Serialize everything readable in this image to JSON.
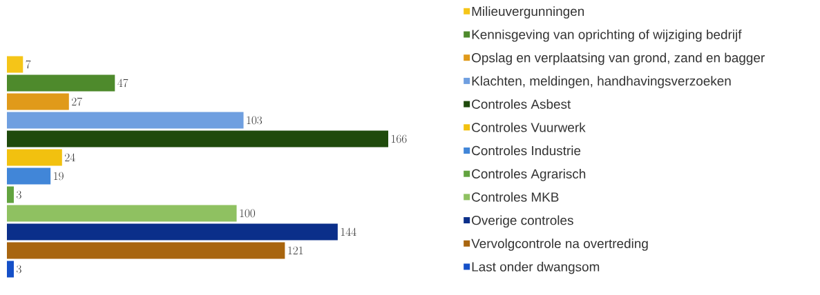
{
  "chart_data": {
    "type": "bar",
    "orientation": "horizontal",
    "categories": [
      null
    ],
    "data_labels": true,
    "legend": "right",
    "series": [
      {
        "name": "Milieuvergunningen",
        "color": "#f5c518",
        "values": [
          7
        ]
      },
      {
        "name": "Kennisgeving van oprichting of wijziging bedrijf",
        "color": "#4e8a2c",
        "values": [
          47
        ]
      },
      {
        "name": "Opslag en verplaatsing van grond, zand en bagger",
        "color": "#e09a1a",
        "values": [
          27
        ]
      },
      {
        "name": "Klachten, meldingen, handhavingsverzoeken",
        "color": "#6f9fe0",
        "values": [
          103
        ]
      },
      {
        "name": "Controles Asbest",
        "color": "#1f4a0c",
        "values": [
          166
        ]
      },
      {
        "name": "Controles Vuurwerk",
        "color": "#f2c10f",
        "values": [
          24
        ]
      },
      {
        "name": "Controles Industrie",
        "color": "#4186d8",
        "values": [
          19
        ]
      },
      {
        "name": "Controles Agrarisch",
        "color": "#62a33f",
        "values": [
          3
        ]
      },
      {
        "name": "Controles MKB",
        "color": "#8fc161",
        "values": [
          100
        ]
      },
      {
        "name": "Overige controles",
        "color": "#0b2f8a",
        "values": [
          144
        ]
      },
      {
        "name": "Vervolgcontrole na overtreding",
        "color": "#a8650f",
        "values": [
          121
        ]
      },
      {
        "name": "Last onder dwangsom",
        "color": "#1550c8",
        "values": [
          3
        ]
      }
    ]
  }
}
